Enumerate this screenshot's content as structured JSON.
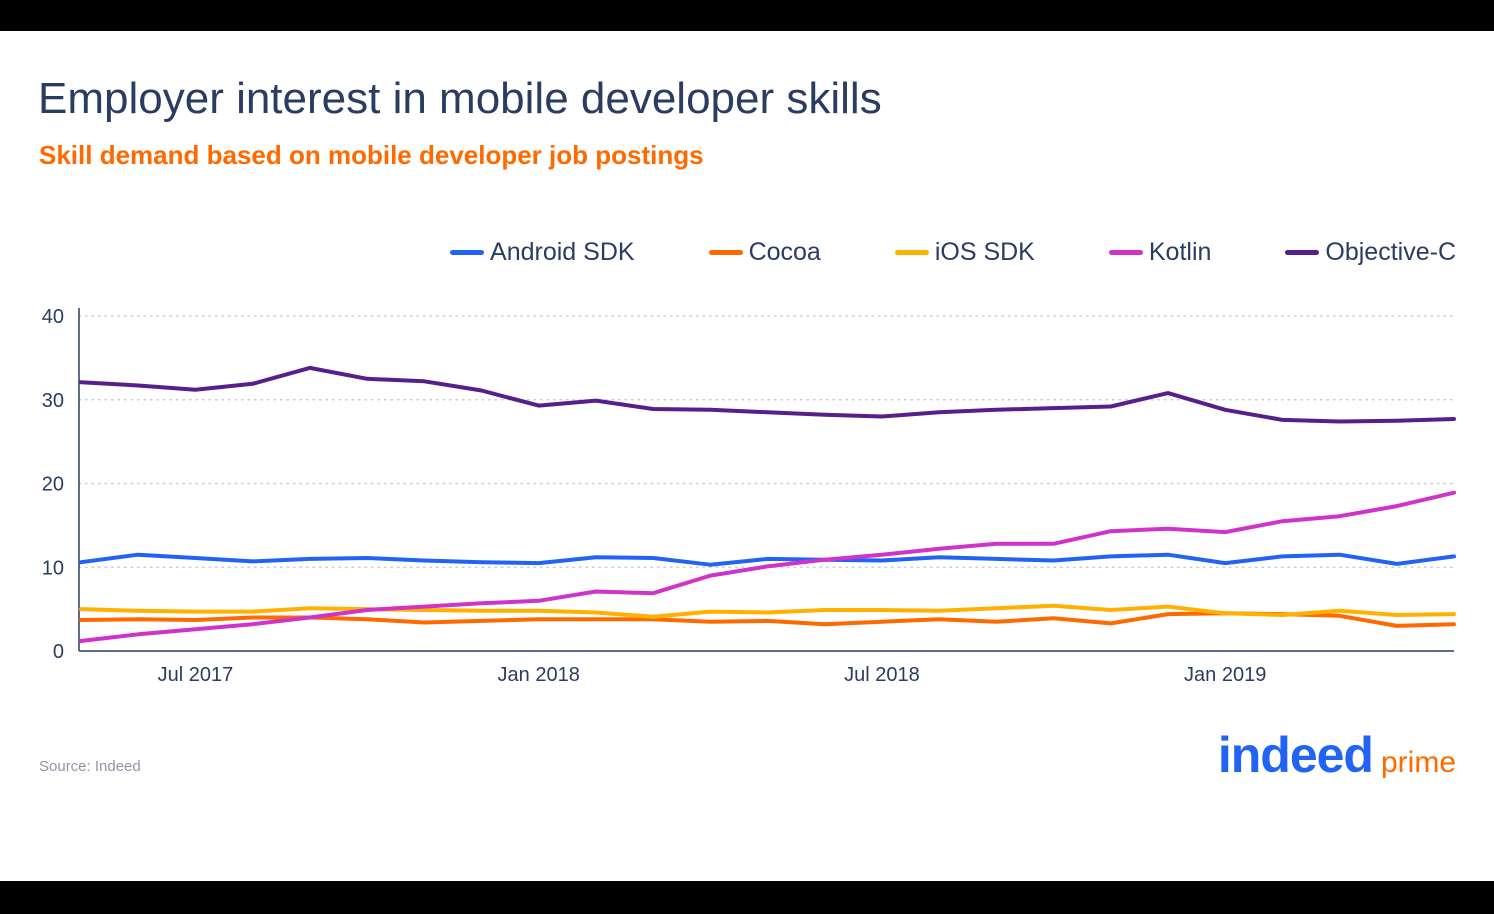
{
  "header": {
    "title": "Employer interest in mobile developer skills",
    "subtitle": "Skill demand based on mobile developer job postings"
  },
  "footer": {
    "source": "Source: Indeed",
    "logo_main": "indeed",
    "logo_sub": "prime"
  },
  "colors": {
    "title": "#2b3c61",
    "subtitle": "#ff6a00",
    "android_sdk": "#2164f3",
    "cocoa": "#ff6a00",
    "ios_sdk": "#ffb100",
    "kotlin": "#d033c9",
    "objective_c": "#561f8c"
  },
  "chart_data": {
    "type": "line",
    "x": [
      "2017-05",
      "2017-06",
      "2017-07",
      "2017-08",
      "2017-09",
      "2017-10",
      "2017-11",
      "2017-12",
      "2018-01",
      "2018-02",
      "2018-03",
      "2018-04",
      "2018-05",
      "2018-06",
      "2018-07",
      "2018-08",
      "2018-09",
      "2018-10",
      "2018-11",
      "2018-12",
      "2019-01",
      "2019-02",
      "2019-03",
      "2019-04",
      "2019-05"
    ],
    "x_ticks": [
      {
        "value": "2017-07",
        "label": "Jul 2017"
      },
      {
        "value": "2018-01",
        "label": "Jan 2018"
      },
      {
        "value": "2018-07",
        "label": "Jul 2018"
      },
      {
        "value": "2019-01",
        "label": "Jan 2019"
      }
    ],
    "ylim": [
      0,
      40
    ],
    "y_ticks": [
      0,
      10,
      20,
      30,
      40
    ],
    "grid": "horizontal dotted",
    "legend_position": "top-right",
    "title": "Employer interest in mobile developer skills",
    "subtitle": "Skill demand based on mobile developer job postings",
    "xlabel": "",
    "ylabel": "",
    "series": [
      {
        "name": "Android SDK",
        "color": "#2164f3",
        "values": [
          10.6,
          11.5,
          11.1,
          10.7,
          11.0,
          11.1,
          10.8,
          10.6,
          10.5,
          11.2,
          11.1,
          10.3,
          11.0,
          10.9,
          10.8,
          11.2,
          11.0,
          10.8,
          11.3,
          11.5,
          10.5,
          11.3,
          11.5,
          10.4,
          11.3
        ]
      },
      {
        "name": "Cocoa",
        "color": "#ff6a00",
        "values": [
          3.7,
          3.8,
          3.7,
          4.0,
          4.0,
          3.8,
          3.4,
          3.6,
          3.8,
          3.8,
          3.8,
          3.5,
          3.6,
          3.2,
          3.5,
          3.8,
          3.5,
          3.9,
          3.3,
          4.4,
          4.5,
          4.4,
          4.2,
          3.0,
          3.2
        ]
      },
      {
        "name": "iOS SDK",
        "color": "#ffb100",
        "values": [
          5.0,
          4.8,
          4.7,
          4.7,
          5.1,
          5.0,
          4.9,
          4.8,
          4.8,
          4.6,
          4.1,
          4.7,
          4.6,
          4.9,
          4.9,
          4.8,
          5.1,
          5.4,
          4.9,
          5.3,
          4.5,
          4.3,
          4.8,
          4.3,
          4.4
        ]
      },
      {
        "name": "Kotlin",
        "color": "#d033c9",
        "values": [
          1.2,
          2.0,
          2.6,
          3.2,
          4.0,
          4.9,
          5.3,
          5.7,
          6.0,
          7.1,
          6.9,
          9.0,
          10.1,
          10.9,
          11.5,
          12.2,
          12.8,
          12.8,
          14.3,
          14.6,
          14.2,
          15.5,
          16.1,
          17.3,
          18.9
        ]
      },
      {
        "name": "Objective-C",
        "color": "#561f8c",
        "values": [
          32.1,
          31.7,
          31.2,
          31.9,
          33.8,
          32.5,
          32.2,
          31.1,
          29.3,
          29.9,
          28.9,
          28.8,
          28.5,
          28.2,
          28.0,
          28.5,
          28.8,
          29.0,
          29.2,
          30.8,
          28.8,
          27.6,
          27.4,
          27.5,
          27.7
        ]
      }
    ]
  }
}
